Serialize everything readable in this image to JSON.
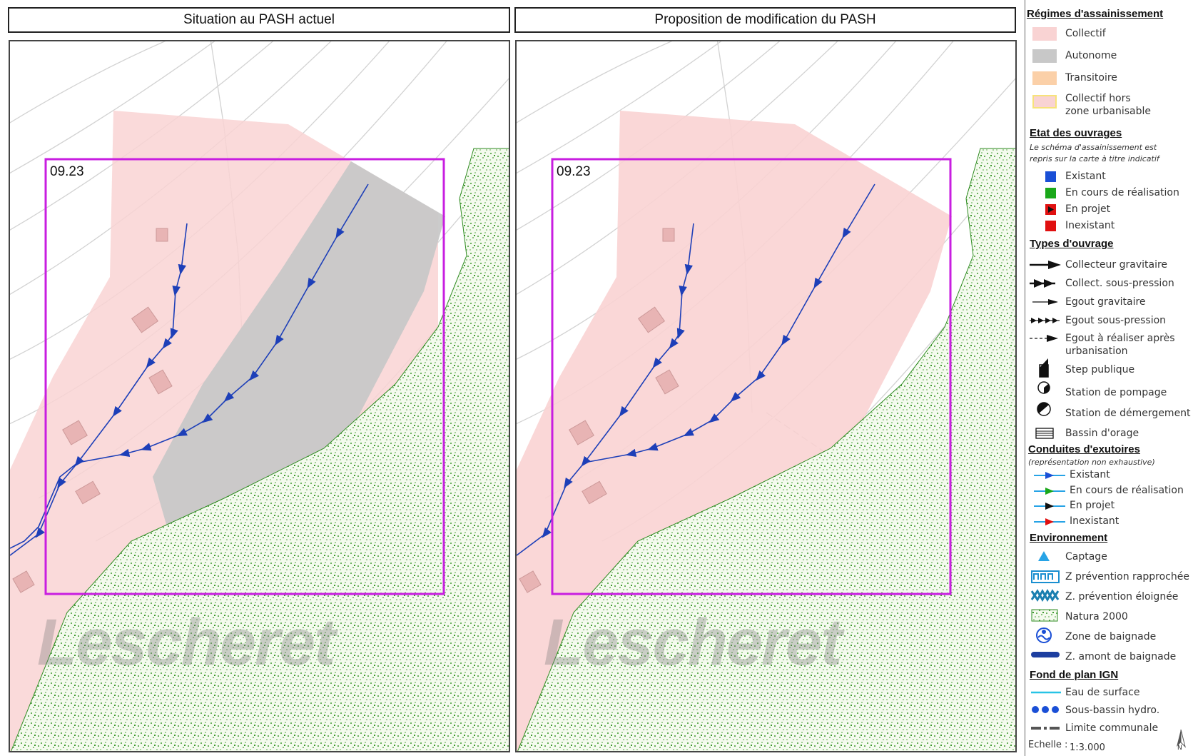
{
  "panels": {
    "left_title": "Situation au PASH actuel",
    "right_title": "Proposition de modification du PASH",
    "zone_label": "09.23",
    "village_label": "Lescheret"
  },
  "legend": {
    "regimes": {
      "heading": "Régimes d'assainissement",
      "items": [
        {
          "label": "Collectif",
          "color": "#f9d3d3"
        },
        {
          "label": "Autonome",
          "color": "#c8c8c8"
        },
        {
          "label": "Transitoire",
          "color": "#fbd0a8"
        },
        {
          "label": "Collectif hors",
          "label2": "zone urbanisable",
          "color": "#f9d3d3"
        }
      ]
    },
    "etat": {
      "heading": "Etat des ouvrages",
      "note1": "Le schéma d'assainissement est",
      "note2": "repris sur la carte à titre indicatif",
      "items": [
        {
          "label": "Existant",
          "color": "#1a4fd6"
        },
        {
          "label": "En cours de réalisation",
          "color": "#1aa81a"
        },
        {
          "label": "En projet",
          "color": "#e01010"
        },
        {
          "label": "Inexistant",
          "color": "#e01010"
        }
      ]
    },
    "types": {
      "heading": "Types d'ouvrage",
      "items": [
        {
          "label": "Collecteur gravitaire"
        },
        {
          "label": "Collect. sous-pression"
        },
        {
          "label": "Egout gravitaire"
        },
        {
          "label": "Egout sous-pression"
        },
        {
          "label": "Egout à réaliser après",
          "label2": "urbanisation"
        },
        {
          "label": "Step publique"
        },
        {
          "label": "Station de pompage"
        },
        {
          "label": "Station de démergement"
        },
        {
          "label": "Bassin d'orage"
        }
      ]
    },
    "conduites": {
      "heading": "Conduites d'exutoires",
      "note": "(représentation non exhaustive)",
      "items": [
        {
          "label": "Existant",
          "color": "#1a4fd6"
        },
        {
          "label": "En cours de réalisation",
          "color": "#1aa81a"
        },
        {
          "label": "En projet",
          "color": "#111111"
        },
        {
          "label": "Inexistant",
          "color": "#e01010"
        }
      ]
    },
    "environnement": {
      "heading": "Environnement",
      "items": [
        {
          "label": "Captage"
        },
        {
          "label": "Z prévention rapprochée"
        },
        {
          "label": "Z. prévention éloignée"
        },
        {
          "label": "Natura 2000"
        },
        {
          "label": "Zone de baignade"
        },
        {
          "label": "Z. amont de baignade"
        }
      ]
    },
    "fond": {
      "heading": "Fond de plan IGN",
      "items": [
        {
          "label": "Eau de surface"
        },
        {
          "label": "Sous-bassin hydro."
        },
        {
          "label": "Limite communale"
        }
      ]
    },
    "scale_label": "Echelle :",
    "scale_value": "1:3.000",
    "north": "N"
  }
}
